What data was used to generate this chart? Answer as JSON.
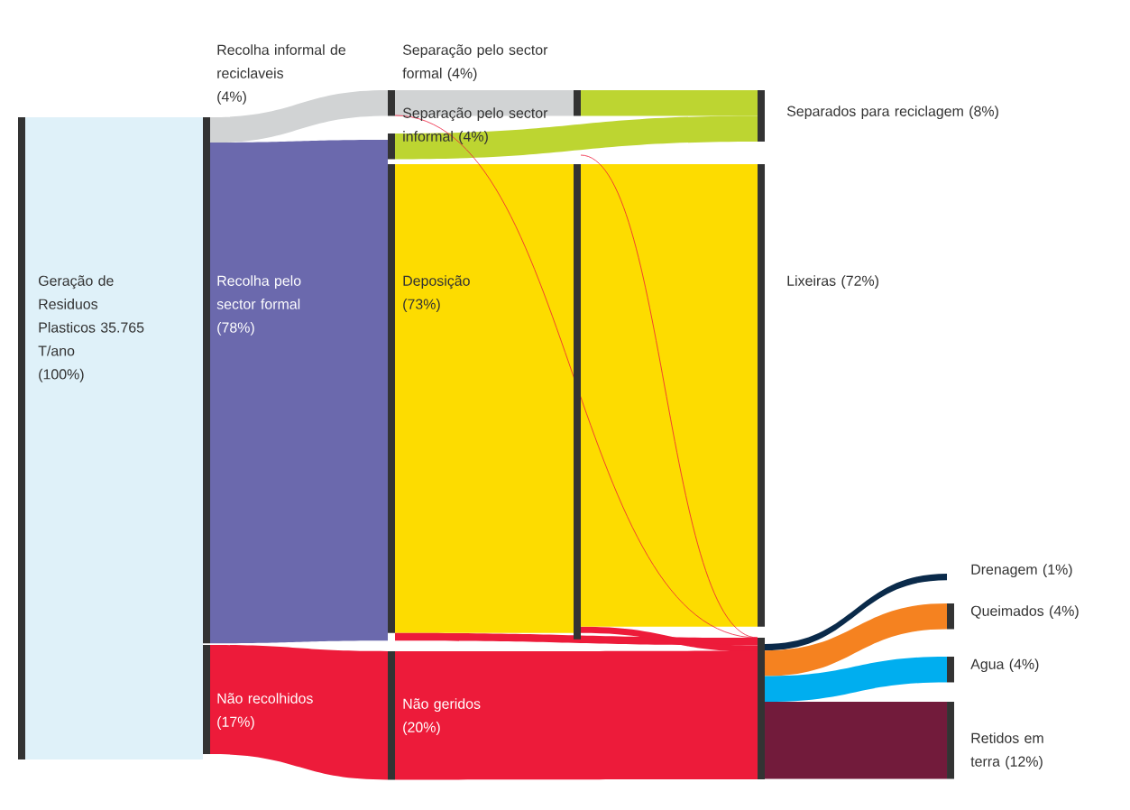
{
  "chart_data": {
    "type": "other",
    "categories": [
      "Geração de Residuos Plasticos 35.765 T/ano",
      "Recolha informal de reciclaveis",
      "Recolha pelo sector formal",
      "Não recolhidos",
      "Separação pelo sector formal",
      "Separação pelo sector informal",
      "Deposição",
      "Não geridos",
      "Separados para reciclagem",
      "Lixeiras",
      "Drenagem",
      "Queimados",
      "Agua",
      "Retidos em terra"
    ],
    "values": [
      100,
      4,
      78,
      17,
      4,
      4,
      73,
      20,
      8,
      72,
      1,
      4,
      4,
      12
    ],
    "value_labels": [
      "(100%)",
      "(4%)",
      "(78%)",
      "(17%)",
      "(4%)",
      "(4%)",
      "(73%)",
      "(20%)",
      "(8%)",
      "(72%)",
      "(1%)",
      "(4%)",
      "(4%)",
      "(12%)"
    ],
    "colors": [
      "#dff1f9",
      "#d1d3d4",
      "#6b69ad",
      "#ed1b3a",
      "#d1d3d4",
      "#bdd531",
      "#fddc00",
      "#ed1b3a",
      "#bdd531",
      "#fddc00",
      "#0a2a4a",
      "#f58220",
      "#00aeef",
      "#721b3b"
    ]
  }
}
